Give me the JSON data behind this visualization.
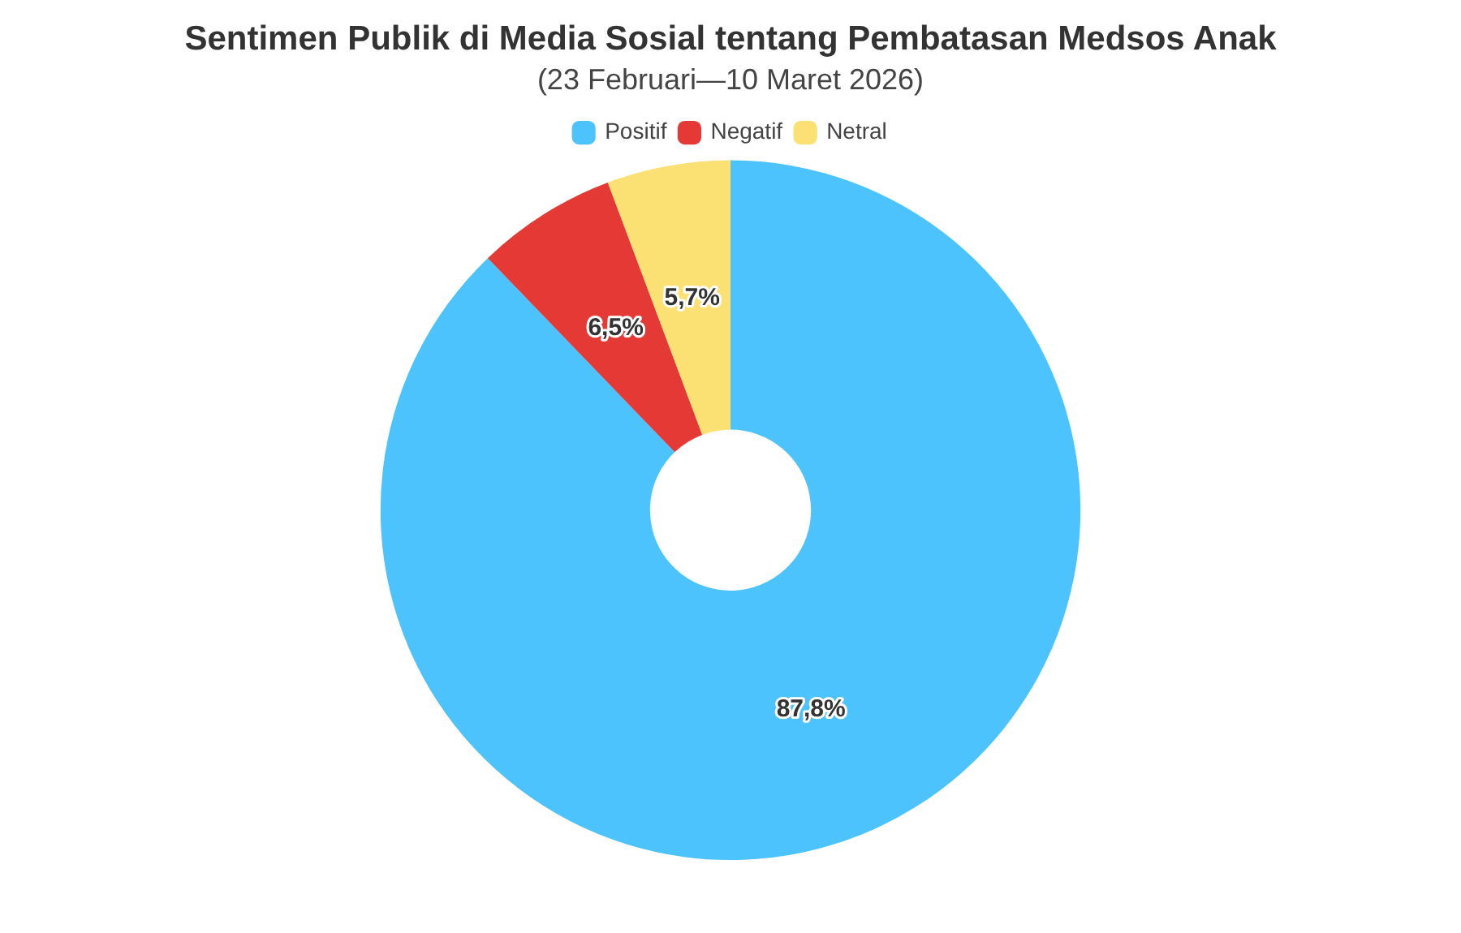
{
  "chart_data": {
    "type": "donut",
    "title": "Sentimen Publik di Media Sosial tentang Pembatasan Medsos Anak",
    "subtitle": "(23 Februari—10 Maret 2026)",
    "categories": [
      "Positif",
      "Negatif",
      "Netral"
    ],
    "values": [
      87.8,
      6.5,
      5.7
    ],
    "colors": [
      "#4dc3fe",
      "#e53935",
      "#fbe073"
    ],
    "value_labels": [
      "87,8%",
      "6,5%",
      "5,7%"
    ],
    "legend": "top"
  }
}
